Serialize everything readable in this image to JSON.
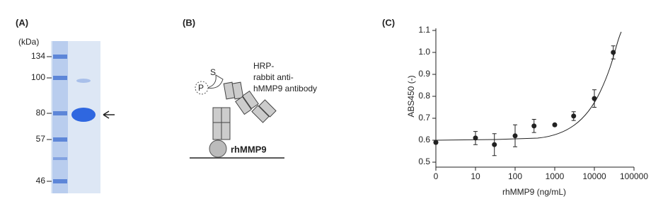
{
  "panel_a": {
    "label": "(A)",
    "unit": "(kDa)",
    "markers": [
      134,
      100,
      80,
      57,
      46
    ]
  },
  "panel_b": {
    "label": "(B)",
    "s_label": "S",
    "p_label": "P",
    "antibody_lines": [
      "HRP-",
      "rabbit anti-",
      "hMMP9 antibody"
    ],
    "antigen": "rhMMP9"
  },
  "chart_data": {
    "type": "scatter",
    "panel_label": "(C)",
    "x_label": "rhMMP9 (ng/mL)",
    "y_label": "ABS450 (-)",
    "x": [
      0,
      10,
      30,
      100,
      300,
      1000,
      3000,
      10000,
      30000
    ],
    "series": [
      {
        "color": "#222222",
        "values": [
          0.59,
          0.61,
          0.58,
          0.62,
          0.665,
          0.67,
          0.71,
          0.79,
          1.0
        ],
        "errors": [
          0,
          0.03,
          0.05,
          0.05,
          0.03,
          0.005,
          0.02,
          0.04,
          0.03
        ]
      }
    ],
    "xscale": "log",
    "xlim": [
      0,
      100000
    ],
    "xticks": [
      0,
      10,
      100,
      1000,
      10000,
      100000
    ],
    "ylim": [
      0.5,
      1.1
    ],
    "yticks": [
      0.5,
      0.6,
      0.7,
      0.8,
      0.9,
      {
        "value": 1,
        "label": "1.0"
      },
      1.1
    ]
  }
}
